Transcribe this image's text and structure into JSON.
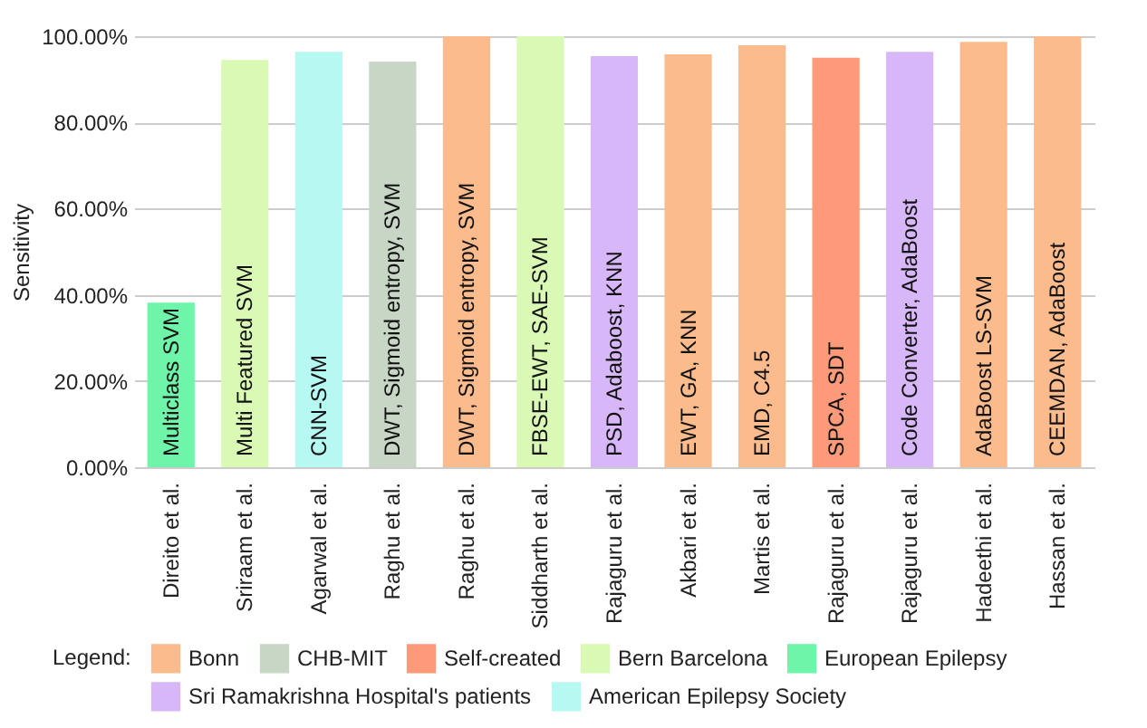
{
  "chart_data": {
    "type": "bar",
    "ylabel": "Sensitivity",
    "legend_title": "Legend:",
    "legend": "bottom",
    "grid": "y",
    "categories": [
      "Direito et al.",
      "Sriraam et al.",
      "Agarwal et al.",
      "Raghu et al.",
      "Raghu et al.",
      "Siddharth et al.",
      "Rajaguru et al.",
      "Akbari et al.",
      "Martis et al.",
      "Rajaguru et al.",
      "Rajaguru et al.",
      "Hadeethi et al.",
      "Hassan et al."
    ],
    "series": [
      {
        "name": "Bonn",
        "color": "#fbbb8c",
        "values": [
          null,
          null,
          null,
          null,
          100,
          null,
          null,
          95.8,
          97.9,
          null,
          null,
          98.7,
          100
        ]
      },
      {
        "name": "CHB-MIT",
        "color": "#c7d6c5",
        "values": [
          null,
          null,
          null,
          94.1,
          null,
          null,
          null,
          null,
          null,
          null,
          null,
          null,
          null
        ]
      },
      {
        "name": "Self-created",
        "color": "#fd9a7a",
        "values": [
          null,
          null,
          null,
          null,
          null,
          null,
          null,
          null,
          null,
          95.0,
          null,
          null,
          null
        ]
      },
      {
        "name": "Bern Barcelona",
        "color": "#d9f9b4",
        "values": [
          null,
          94.5,
          null,
          null,
          null,
          100,
          null,
          null,
          null,
          null,
          null,
          null,
          null
        ]
      },
      {
        "name": "European Epilepsy",
        "color": "#6ef5a9",
        "values": [
          38.2,
          null,
          null,
          null,
          null,
          null,
          null,
          null,
          null,
          null,
          null,
          null,
          null
        ]
      },
      {
        "name": "Sri Ramakrishna Hospital's patients",
        "color": "#d8b7f8",
        "values": [
          null,
          null,
          null,
          null,
          null,
          null,
          95.4,
          null,
          null,
          null,
          96.4,
          null,
          null
        ]
      },
      {
        "name": "American Epilepsy Society",
        "color": "#b6f8f2",
        "values": [
          null,
          null,
          96.4,
          null,
          null,
          null,
          null,
          null,
          null,
          null,
          null,
          null,
          null
        ]
      }
    ],
    "annotations": [
      "Multiclass SVM",
      "Multi Featured SVM",
      "CNN-SVM",
      "DWT, Sigmoid entropy, SVM",
      "DWT, Sigmoid entropy, SVM",
      "FBSE-EWT, SAE-SVM",
      "PSD, Adaboost, KNN",
      "EWT, GA, KNN",
      "EMD, C4.5",
      "SPCA, SDT",
      "Code Converter, AdaBoost",
      "AdaBoost LS-SVM",
      "CEEMDAN, AdaBoost"
    ],
    "ylim": [
      0,
      100
    ],
    "yticks": [
      {
        "value": 0,
        "label": "0.00%"
      },
      {
        "value": 20,
        "label": "20.00%"
      },
      {
        "value": 40,
        "label": "40.00%"
      },
      {
        "value": 60,
        "label": "60.00%"
      },
      {
        "value": 80,
        "label": "80.00%"
      },
      {
        "value": 100,
        "label": "100.00%"
      }
    ]
  }
}
